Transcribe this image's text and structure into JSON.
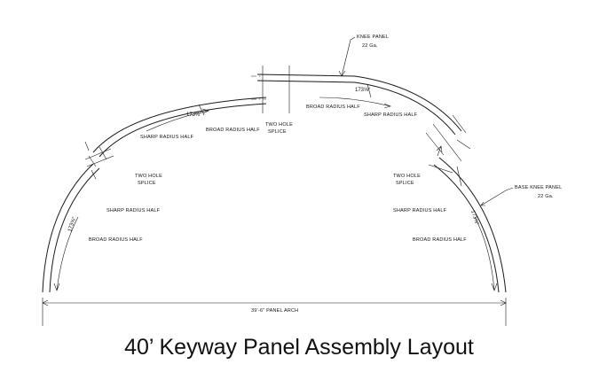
{
  "title": "40’ Keyway Panel Assembly Layout",
  "colors": {
    "line": "#1a1a1a",
    "background": "#ffffff"
  },
  "labels": {
    "knee_panel": "KNEE PANEL",
    "knee_panel_gauge": "22 Ga.",
    "base_knee_panel": "BASE KNEE PANEL",
    "base_knee_panel_gauge": "22 Ga.",
    "two_hole": "TWO HOLE",
    "splice": "SPLICE",
    "broad_radius_half": "BROAD RADIUS HALF",
    "sharp_radius_half": "SHARP RADIUS HALF",
    "angle_top_left": "173⅝°",
    "angle_top_right": "173⅝°",
    "angle_left": "173⅝°",
    "angle_right": "173⅝°",
    "panel_arch": "39’-6\" PANEL ARCH"
  }
}
